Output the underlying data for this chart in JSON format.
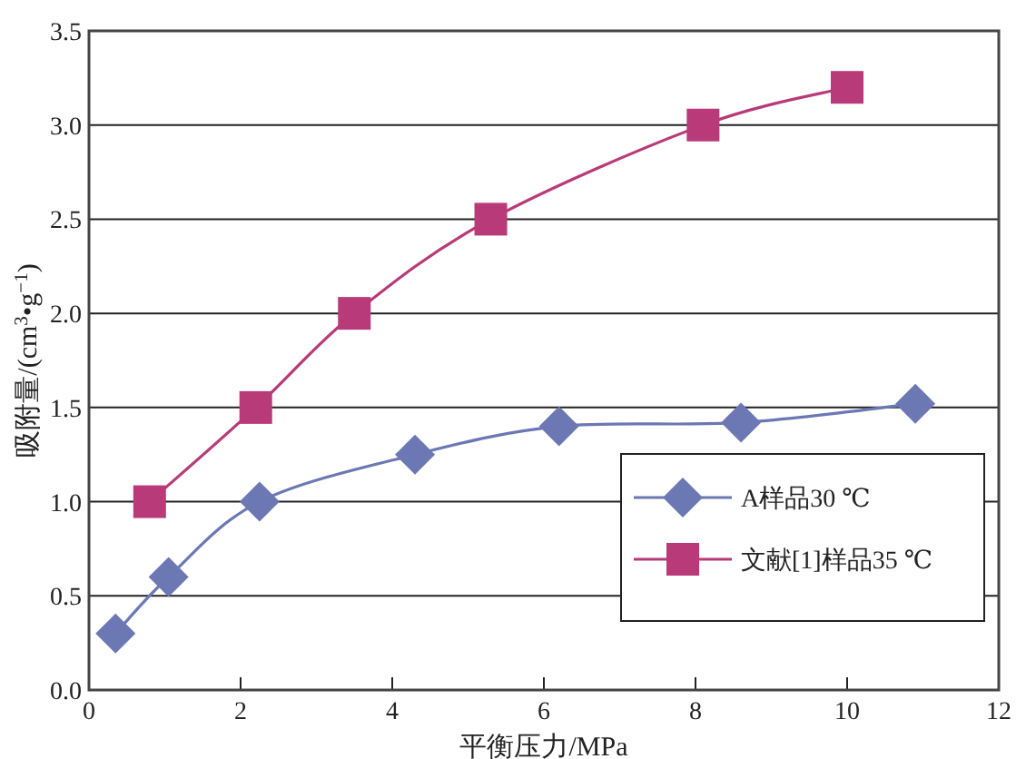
{
  "chart_data": {
    "type": "line",
    "xlabel": "平衡压力/MPa",
    "ylabel": "吸附量/(cm$^{3}$•g$^{−1}$)",
    "xlim": [
      0,
      12
    ],
    "xticks": [
      0,
      2,
      4,
      6,
      8,
      10,
      12
    ],
    "ylim": [
      0,
      3.5
    ],
    "yticks": [
      {
        "value": 0,
        "label": "0.0"
      },
      {
        "value": 0.5,
        "label": "0.5"
      },
      {
        "value": 1,
        "label": "1.0"
      },
      {
        "value": 1.5,
        "label": "1.5"
      },
      {
        "value": 2,
        "label": "2.0"
      },
      {
        "value": 2.5,
        "label": "2.5"
      },
      {
        "value": 3,
        "label": "3.0"
      },
      {
        "value": 3.5,
        "label": "3.5"
      }
    ],
    "grid": "y",
    "legend": "bottom right",
    "series": [
      {
        "name": "A样品30 ℃",
        "color": "#6b78b4",
        "marker": "diamond",
        "x": [
          0.35,
          1.05,
          2.25,
          4.3,
          6.2,
          8.6,
          10.9
        ],
        "values": [
          0.3,
          0.6,
          1.0,
          1.25,
          1.4,
          1.42,
          1.52
        ]
      },
      {
        "name": "文献[1]样品35 ℃",
        "color": "#b83a78",
        "marker": "square",
        "x": [
          0.8,
          2.2,
          3.5,
          5.3,
          8.1,
          10.0
        ],
        "values": [
          1.0,
          1.5,
          2.0,
          2.5,
          3.0,
          3.2
        ]
      }
    ]
  }
}
